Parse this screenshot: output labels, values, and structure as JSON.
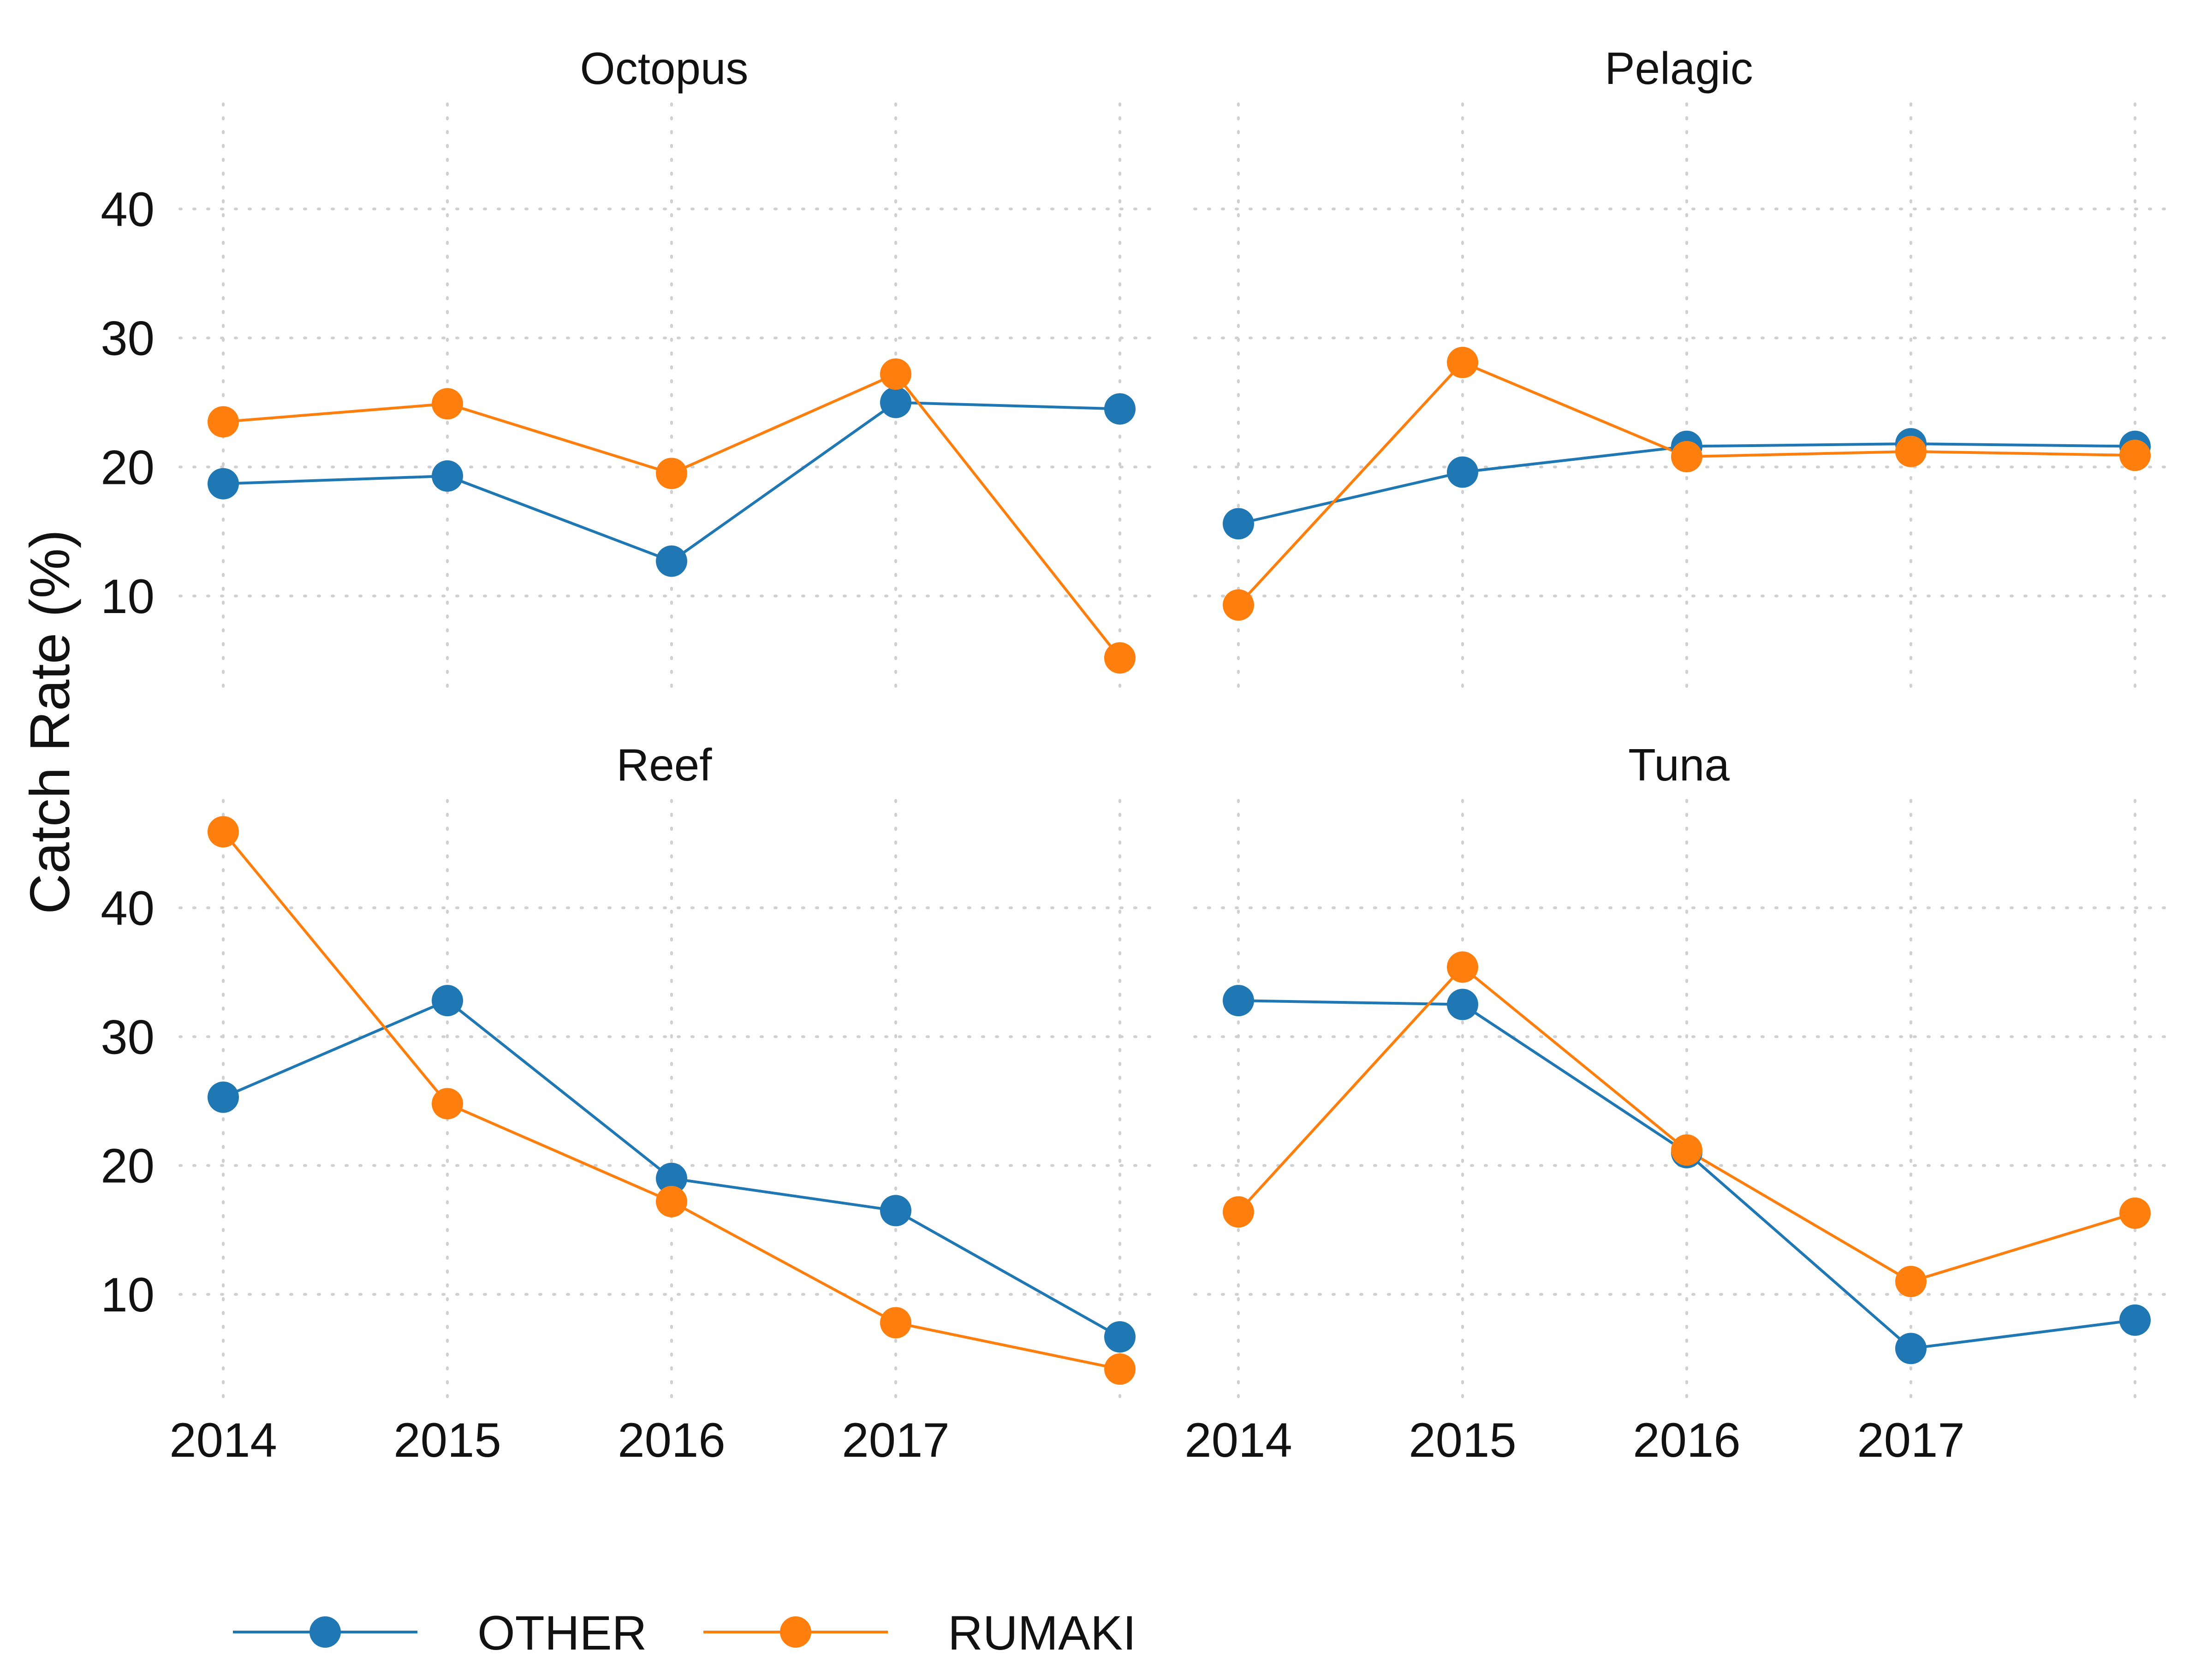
{
  "chart_data": {
    "type": "line",
    "ylabel": "Catch Rate (%)",
    "x": [
      2014,
      2015,
      2016,
      2017,
      2018
    ],
    "x_tick_labels": [
      "2014",
      "2015",
      "2016",
      "2017"
    ],
    "y_ticks": [
      10,
      20,
      30,
      40
    ],
    "ylim": [
      1.5,
      49
    ],
    "grid": true,
    "grid_style": "dotted",
    "legend_position": "bottom",
    "series_colors": {
      "OTHER": "#1f77b4",
      "RUMAKI": "#ff7f0e"
    },
    "legend": [
      {
        "name": "OTHER",
        "color": "#1f77b4"
      },
      {
        "name": "RUMAKI",
        "color": "#ff7f0e"
      }
    ],
    "panels": [
      {
        "title": "Octopus",
        "series": [
          {
            "name": "OTHER",
            "values": [
              18.7,
              19.3,
              12.7,
              25.0,
              24.5
            ]
          },
          {
            "name": "RUMAKI",
            "values": [
              23.5,
              24.9,
              19.5,
              27.2,
              5.2
            ]
          }
        ]
      },
      {
        "title": "Pelagic",
        "series": [
          {
            "name": "OTHER",
            "values": [
              15.6,
              19.6,
              21.6,
              21.8,
              21.6
            ]
          },
          {
            "name": "RUMAKI",
            "values": [
              9.3,
              28.1,
              20.8,
              21.2,
              20.9
            ]
          }
        ]
      },
      {
        "title": "Reef",
        "series": [
          {
            "name": "OTHER",
            "values": [
              25.3,
              32.8,
              19.0,
              16.5,
              6.7
            ]
          },
          {
            "name": "RUMAKI",
            "values": [
              45.9,
              24.8,
              17.2,
              7.8,
              4.2
            ]
          }
        ]
      },
      {
        "title": "Tuna",
        "series": [
          {
            "name": "OTHER",
            "values": [
              32.8,
              32.5,
              21.0,
              5.8,
              8.0
            ]
          },
          {
            "name": "RUMAKI",
            "values": [
              16.4,
              35.4,
              21.2,
              11.0,
              16.3
            ]
          }
        ]
      }
    ]
  }
}
